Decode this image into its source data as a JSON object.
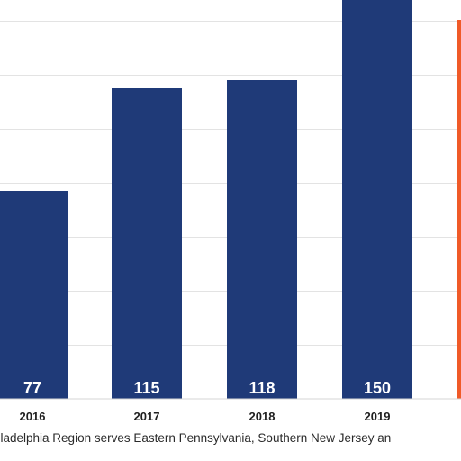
{
  "chart_data": {
    "type": "bar",
    "categories": [
      "2016",
      "2017",
      "2018",
      "2019",
      ""
    ],
    "values": [
      77,
      115,
      118,
      150,
      null
    ],
    "value_labels": [
      "77",
      "115",
      "118",
      "150",
      ""
    ],
    "ylim": [
      0,
      140
    ],
    "grid": true,
    "colors": {
      "bar": "#1f3a78",
      "highlight": "#f05a28"
    },
    "footnote": "hiladelphia Region serves Eastern Pennsylvania, Southern New Jersey an"
  }
}
